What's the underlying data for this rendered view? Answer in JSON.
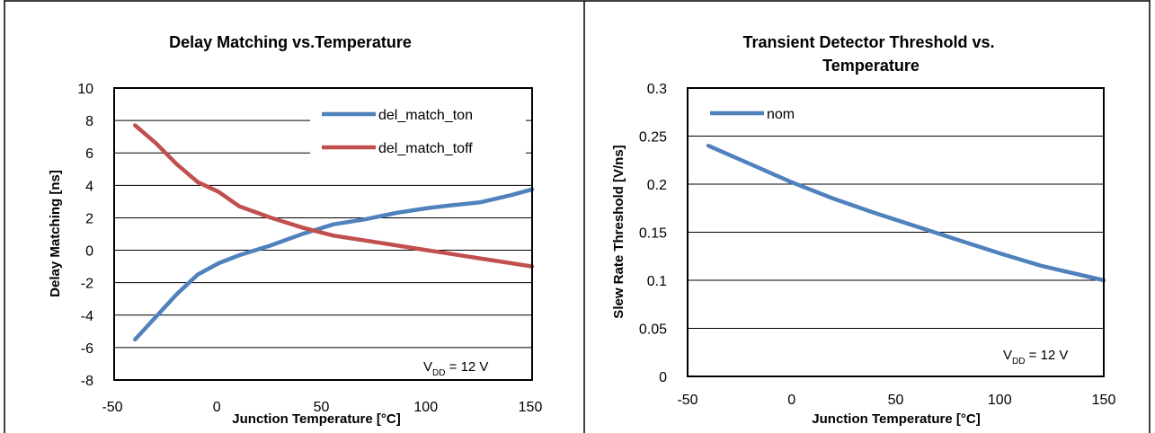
{
  "chart_data": [
    {
      "type": "line",
      "title": "Delay Matching vs.Temperature",
      "xlabel": "Junction Temperature [°C]",
      "ylabel": "Delay Matching [ns]",
      "xlim": [
        -50,
        150
      ],
      "ylim": [
        -8,
        10
      ],
      "xticks": [
        "-50",
        "0",
        "50",
        "100",
        "150"
      ],
      "yticks": [
        "10",
        "8",
        "6",
        "4",
        "2",
        "0",
        "-2",
        "-4",
        "-6",
        "-8"
      ],
      "grid": "horizontal",
      "legend_position": "top-right",
      "annotation": {
        "main": "V",
        "sub": "DD",
        "value": " =  12 V"
      },
      "series": [
        {
          "name": "del_match_ton",
          "color": "#4f81bd",
          "x": [
            -40,
            -30,
            -20,
            -10,
            0,
            10,
            25,
            40,
            55,
            70,
            85,
            100,
            110,
            125,
            140,
            150
          ],
          "y": [
            -5.5,
            -4.1,
            -2.7,
            -1.5,
            -0.8,
            -0.3,
            0.3,
            1.0,
            1.6,
            1.9,
            2.3,
            2.6,
            2.75,
            2.95,
            3.4,
            3.75
          ]
        },
        {
          "name": "del_match_toff",
          "color": "#c0504d",
          "x": [
            -40,
            -30,
            -20,
            -10,
            0,
            10,
            25,
            40,
            55,
            70,
            85,
            100,
            110,
            125,
            140,
            150
          ],
          "y": [
            7.7,
            6.6,
            5.3,
            4.2,
            3.6,
            2.7,
            2.0,
            1.4,
            0.9,
            0.6,
            0.3,
            0.0,
            -0.2,
            -0.5,
            -0.8,
            -1.0
          ]
        }
      ]
    },
    {
      "type": "line",
      "title": "Transient Detector Threshold  vs. Temperature",
      "xlabel": "Junction Temperature [°C]",
      "ylabel": "Slew Rate Threshold [V/ns]",
      "xlim": [
        -50,
        150
      ],
      "ylim": [
        0,
        0.3
      ],
      "xticks": [
        "-50",
        "0",
        "50",
        "100",
        "150"
      ],
      "yticks": [
        "0.3",
        "0.25",
        "0.2",
        "0.15",
        "0.1",
        "0.05",
        "0"
      ],
      "grid": "horizontal",
      "legend_position": "top-left",
      "annotation": {
        "main": "V",
        "sub": "DD",
        "value": " =  12 V"
      },
      "series": [
        {
          "name": "nom",
          "color": "#4f81bd",
          "x": [
            -40,
            -20,
            0,
            20,
            40,
            60,
            80,
            100,
            120,
            150
          ],
          "y": [
            0.24,
            0.221,
            0.202,
            0.185,
            0.17,
            0.156,
            0.142,
            0.128,
            0.115,
            0.1
          ]
        }
      ]
    }
  ]
}
